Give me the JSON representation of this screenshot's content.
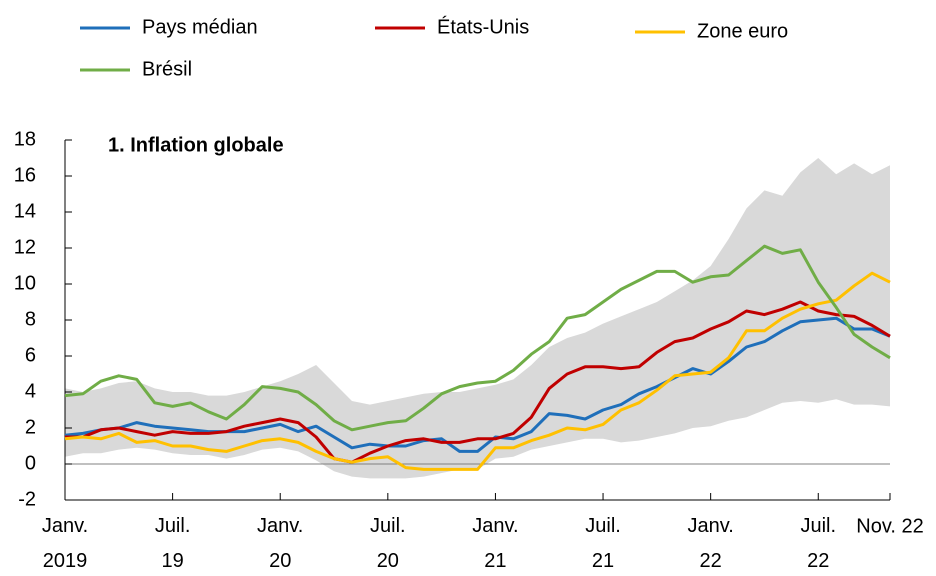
{
  "chart_data": {
    "type": "line",
    "subtitle": "1. Inflation globale",
    "categories": [
      "Janv.\n2019",
      null,
      null,
      null,
      null,
      null,
      "Juil.\n19",
      null,
      null,
      null,
      null,
      null,
      "Janv.\n20",
      null,
      null,
      null,
      null,
      null,
      "Juil.\n20",
      null,
      null,
      null,
      null,
      null,
      "Janv.\n21",
      null,
      null,
      null,
      null,
      null,
      "Juil.\n21",
      null,
      null,
      null,
      null,
      null,
      "Janv.\n22",
      null,
      null,
      null,
      null,
      null,
      "Juil.\n22",
      null,
      null,
      null,
      "Nov. 22"
    ],
    "series": [
      {
        "name": "Pays médian",
        "color": "#1f6fba",
        "values": [
          1.6,
          1.7,
          1.9,
          2.0,
          2.3,
          2.1,
          2.0,
          1.9,
          1.8,
          1.8,
          1.8,
          2.0,
          2.2,
          1.8,
          2.1,
          1.5,
          0.9,
          1.1,
          1.0,
          1.0,
          1.3,
          1.4,
          0.7,
          0.7,
          1.5,
          1.4,
          1.8,
          2.8,
          2.7,
          2.5,
          3.0,
          3.3,
          3.9,
          4.3,
          4.8,
          5.3,
          5.0,
          5.7,
          6.5,
          6.8,
          7.4,
          7.9,
          8.0,
          8.1,
          7.5,
          7.5,
          7.1
        ]
      },
      {
        "name": "États-Unis",
        "color": "#c00000",
        "values": [
          1.5,
          1.5,
          1.9,
          2.0,
          1.8,
          1.6,
          1.8,
          1.7,
          1.7,
          1.8,
          2.1,
          2.3,
          2.5,
          2.3,
          1.5,
          0.3,
          0.1,
          0.6,
          1.0,
          1.3,
          1.4,
          1.2,
          1.2,
          1.4,
          1.4,
          1.7,
          2.6,
          4.2,
          5.0,
          5.4,
          5.4,
          5.3,
          5.4,
          6.2,
          6.8,
          7.0,
          7.5,
          7.9,
          8.5,
          8.3,
          8.6,
          9.0,
          8.5,
          8.3,
          8.2,
          7.7,
          7.1
        ]
      },
      {
        "name": "Zone euro",
        "color": "#ffc000",
        "values": [
          1.4,
          1.5,
          1.4,
          1.7,
          1.2,
          1.3,
          1.0,
          1.0,
          0.8,
          0.7,
          1.0,
          1.3,
          1.4,
          1.2,
          0.7,
          0.3,
          0.1,
          0.3,
          0.4,
          -0.2,
          -0.3,
          -0.3,
          -0.3,
          -0.3,
          0.9,
          0.9,
          1.3,
          1.6,
          2.0,
          1.9,
          2.2,
          3.0,
          3.4,
          4.1,
          4.9,
          5.0,
          5.1,
          5.9,
          7.4,
          7.4,
          8.1,
          8.6,
          8.9,
          9.1,
          9.9,
          10.6,
          10.1
        ]
      },
      {
        "name": "Brésil",
        "color": "#70ad47",
        "values": [
          3.8,
          3.9,
          4.6,
          4.9,
          4.7,
          3.4,
          3.2,
          3.4,
          2.9,
          2.5,
          3.3,
          4.3,
          4.2,
          4.0,
          3.3,
          2.4,
          1.9,
          2.1,
          2.3,
          2.4,
          3.1,
          3.9,
          4.3,
          4.5,
          4.6,
          5.2,
          6.1,
          6.8,
          8.1,
          8.3,
          9.0,
          9.7,
          10.2,
          10.7,
          10.7,
          10.1,
          10.4,
          10.5,
          11.3,
          12.1,
          11.7,
          11.9,
          10.1,
          8.7,
          7.2,
          6.5,
          5.9
        ]
      }
    ],
    "band": {
      "color": "#d9d9d9",
      "lower": [
        0.4,
        0.6,
        0.6,
        0.8,
        0.9,
        0.8,
        0.6,
        0.5,
        0.5,
        0.3,
        0.5,
        0.8,
        0.9,
        0.7,
        0.2,
        -0.4,
        -0.7,
        -0.8,
        -0.8,
        -0.8,
        -0.7,
        -0.5,
        -0.3,
        -0.3,
        0.3,
        0.4,
        0.8,
        1.0,
        1.2,
        1.4,
        1.4,
        1.2,
        1.3,
        1.5,
        1.7,
        2.0,
        2.1,
        2.4,
        2.6,
        3.0,
        3.4,
        3.5,
        3.4,
        3.6,
        3.3,
        3.3,
        3.2
      ],
      "upper": [
        4.2,
        4.0,
        4.2,
        4.5,
        4.6,
        4.2,
        4.0,
        4.0,
        3.8,
        3.8,
        4.0,
        4.3,
        4.6,
        5.0,
        5.5,
        4.5,
        3.5,
        3.3,
        3.5,
        3.7,
        3.9,
        4.0,
        4.0,
        4.2,
        4.4,
        4.7,
        5.5,
        6.5,
        7.0,
        7.3,
        7.8,
        8.2,
        8.6,
        9.0,
        9.6,
        10.2,
        11.0,
        12.5,
        14.2,
        15.2,
        14.9,
        16.2,
        17.0,
        16.1,
        16.7,
        16.1,
        16.6
      ]
    },
    "ylim": [
      -2,
      18
    ],
    "yticks": [
      -2,
      0,
      2,
      4,
      6,
      8,
      10,
      12,
      14,
      16,
      18
    ]
  }
}
